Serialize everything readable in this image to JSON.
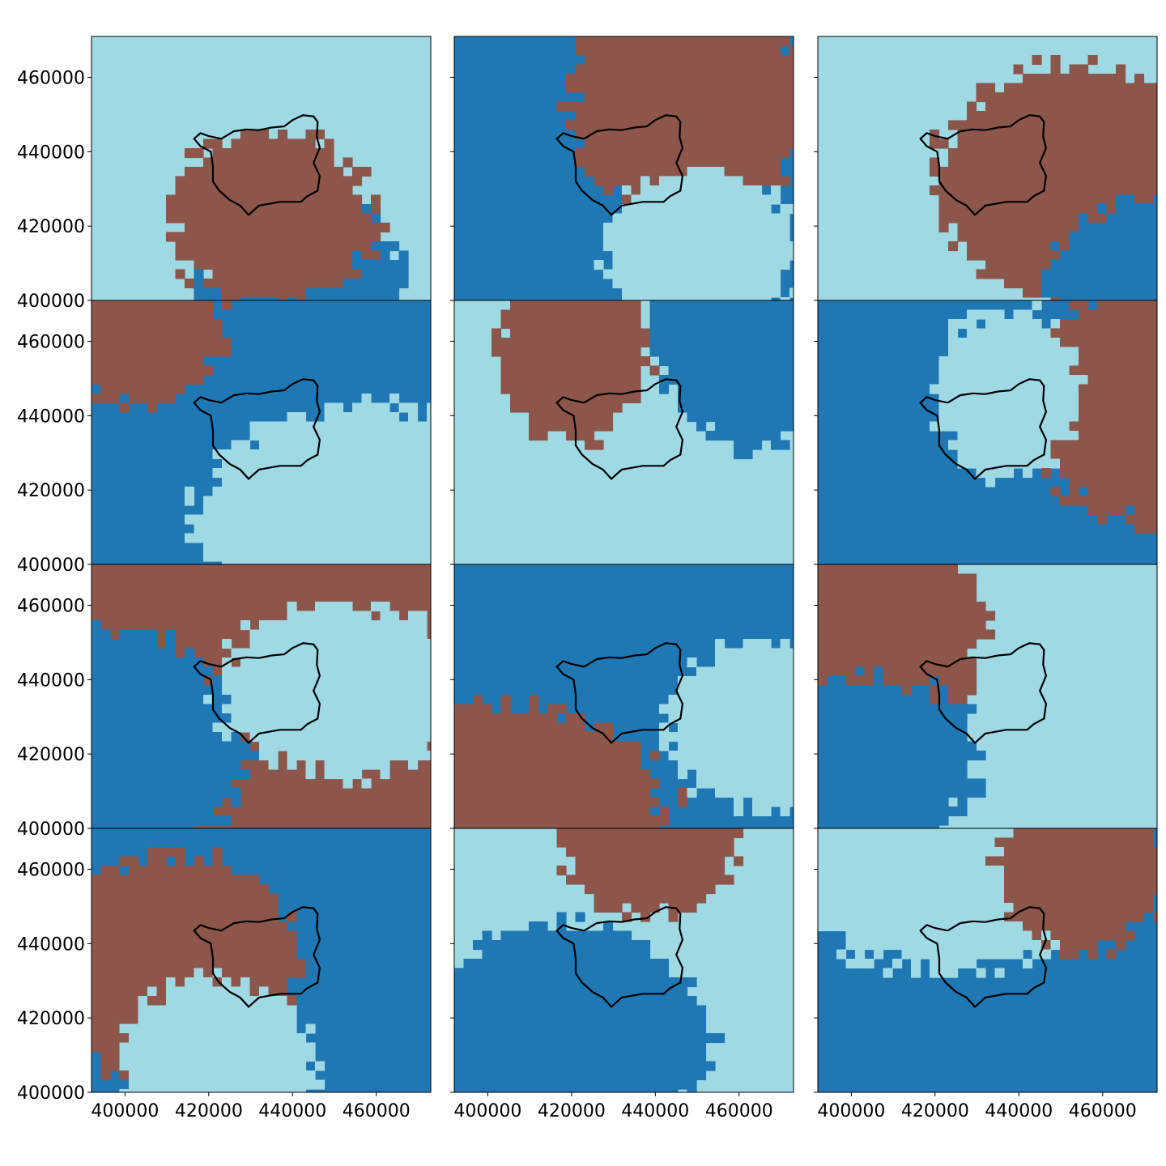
{
  "colors": {
    "class_a": "#9fd9e4",
    "class_b": "#1f77b4",
    "class_c": "#8c564b",
    "outline": "#000000"
  },
  "axes": {
    "x_ticks": [
      "400000",
      "420000",
      "440000",
      "460000"
    ],
    "y_ticks": [
      "400000",
      "420000",
      "440000",
      "460000"
    ]
  },
  "panels": [
    {
      "row": 0,
      "col": 0
    },
    {
      "row": 0,
      "col": 1
    },
    {
      "row": 0,
      "col": 2
    },
    {
      "row": 1,
      "col": 0
    },
    {
      "row": 1,
      "col": 1
    },
    {
      "row": 1,
      "col": 2
    },
    {
      "row": 2,
      "col": 0
    },
    {
      "row": 2,
      "col": 1
    },
    {
      "row": 2,
      "col": 2
    },
    {
      "row": 3,
      "col": 0
    },
    {
      "row": 3,
      "col": 1
    },
    {
      "row": 3,
      "col": 2
    }
  ]
}
